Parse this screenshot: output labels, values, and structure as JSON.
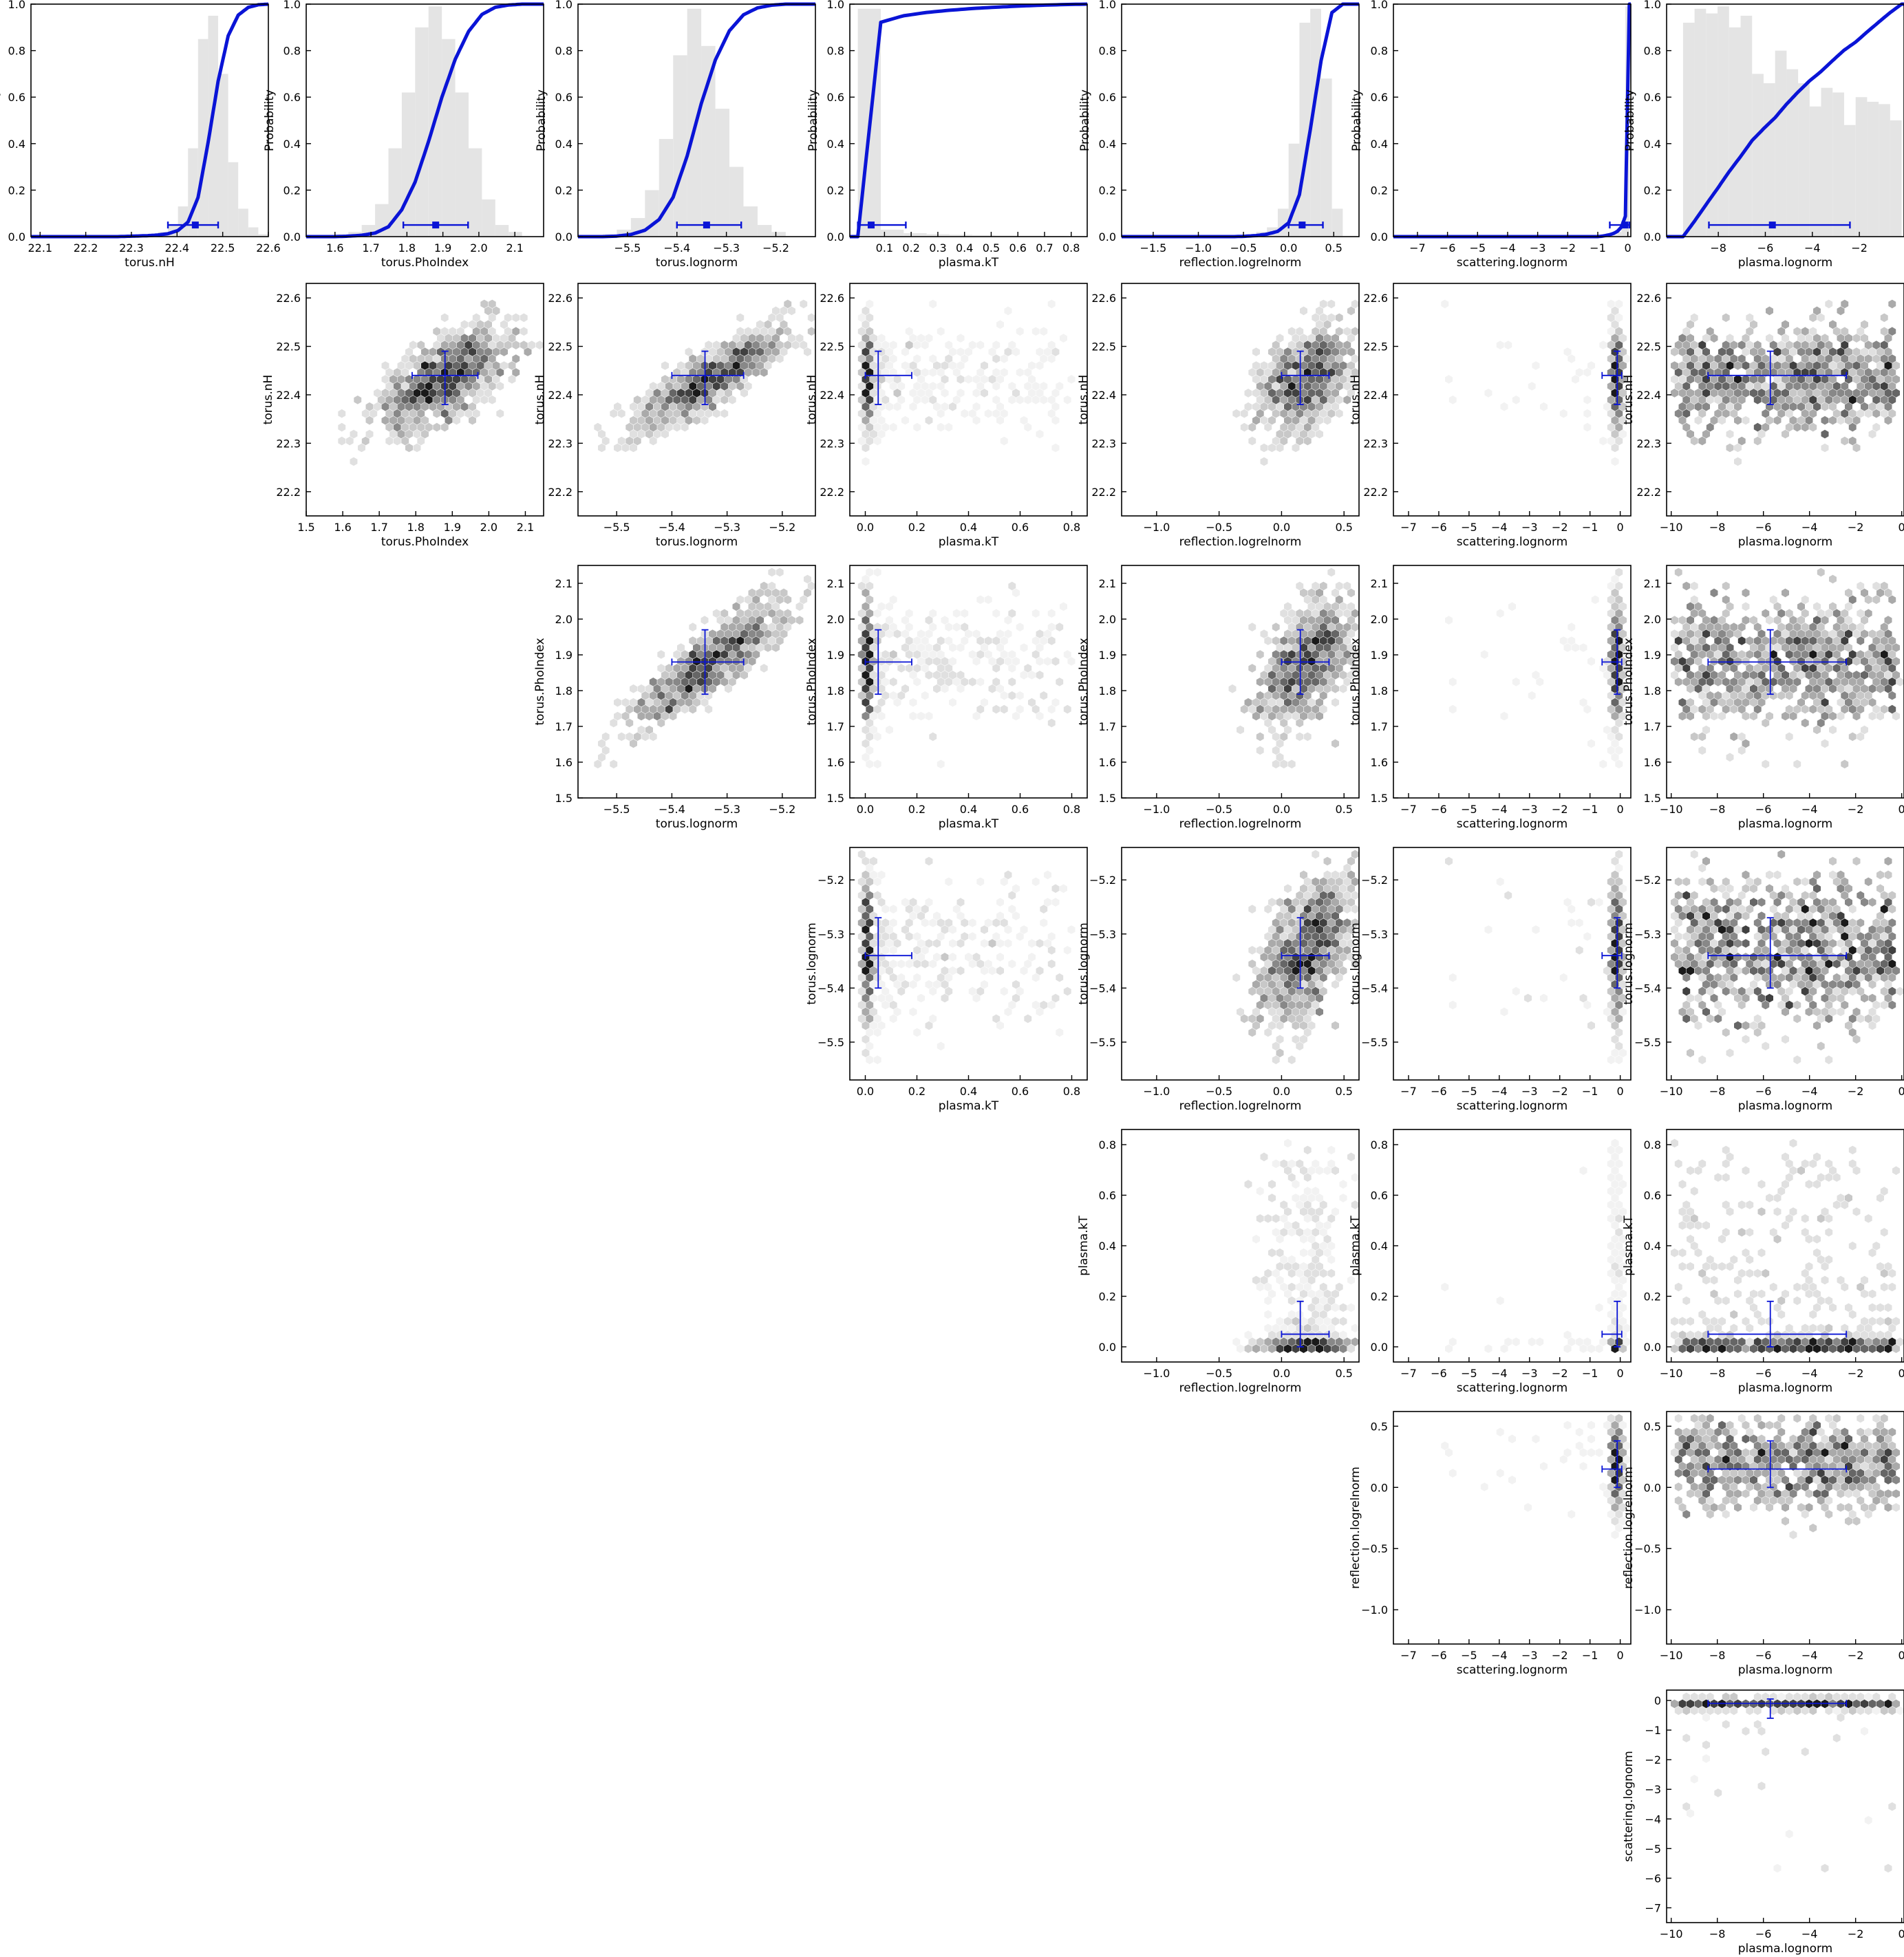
{
  "chart_data": {
    "type": "corner",
    "colors": {
      "accent": "#0a14d6",
      "hist": "#e4e4e4",
      "frame": "#000000"
    },
    "hist_ylabel": "Probability",
    "hist_yticks": [
      "0.0",
      "0.2",
      "0.4",
      "0.6",
      "0.8",
      "1.0"
    ],
    "params": [
      {
        "name": "torus.nH",
        "range": [
          22.08,
          22.6
        ],
        "ticks": [
          22.1,
          22.2,
          22.3,
          22.4,
          22.5,
          22.6
        ],
        "tick_labels": [
          "22.1",
          "22.2",
          "22.3",
          "22.4",
          "22.5",
          "22.6"
        ],
        "scatter_range": [
          22.15,
          22.63
        ],
        "scatter_ticks": [
          22.2,
          22.3,
          22.4,
          22.5,
          22.6
        ],
        "scatter_tick_labels": [
          "22.2",
          "22.3",
          "22.4",
          "22.5",
          "22.6"
        ],
        "median": 22.43,
        "center": 22.44,
        "lo": 22.38,
        "hi": 22.49,
        "hist": [
          0.005,
          0.005,
          0.005,
          0.01,
          0.02,
          0.05,
          0.13,
          0.38,
          0.85,
          0.95,
          0.7,
          0.32,
          0.12,
          0.04,
          0.01
        ],
        "hist_range": [
          22.27,
          22.6
        ]
      },
      {
        "name": "torus.PhoIndex",
        "range": [
          1.52,
          2.18
        ],
        "ticks": [
          1.6,
          1.7,
          1.8,
          1.9,
          2.0,
          2.1
        ],
        "tick_labels": [
          "1.6",
          "1.7",
          "1.8",
          "1.9",
          "2.0",
          "2.1"
        ],
        "scatter_range": [
          1.5,
          2.15
        ],
        "scatter_ticks": [
          1.5,
          1.6,
          1.7,
          1.8,
          1.9,
          2.0,
          2.1
        ],
        "scatter_tick_labels": [
          "1.5",
          "1.6",
          "1.7",
          "1.8",
          "1.9",
          "2.0",
          "2.1"
        ],
        "median": 1.87,
        "center": 1.88,
        "lo": 1.79,
        "hi": 1.97,
        "hist": [
          0.01,
          0.02,
          0.05,
          0.14,
          0.38,
          0.62,
          0.9,
          0.99,
          0.85,
          0.62,
          0.38,
          0.16,
          0.05,
          0.02
        ],
        "hist_range": [
          1.6,
          2.12
        ]
      },
      {
        "name": "torus.lognorm",
        "range": [
          -5.6,
          -5.12
        ],
        "ticks": [
          -5.5,
          -5.4,
          -5.3,
          -5.2
        ],
        "tick_labels": [
          "−5.5",
          "−5.4",
          "−5.3",
          "−5.2"
        ],
        "scatter_range": [
          -5.57,
          -5.14
        ],
        "scatter_ticks": [
          -5.5,
          -5.4,
          -5.3,
          -5.2
        ],
        "scatter_tick_labels": [
          "−5.5",
          "−5.4",
          "−5.3",
          "−5.2"
        ],
        "median": -5.335,
        "center": -5.34,
        "lo": -5.4,
        "hi": -5.27,
        "hist": [
          0.01,
          0.03,
          0.08,
          0.2,
          0.42,
          0.78,
          0.98,
          0.82,
          0.55,
          0.3,
          0.13,
          0.05,
          0.02
        ],
        "hist_range": [
          -5.55,
          -5.18
        ]
      },
      {
        "name": "plasma.kT",
        "range": [
          -0.03,
          0.86
        ],
        "ticks": [
          0.1,
          0.2,
          0.3,
          0.4,
          0.5,
          0.6,
          0.7,
          0.8
        ],
        "tick_labels": [
          "0.1",
          "0.2",
          "0.3",
          "0.4",
          "0.5",
          "0.6",
          "0.7",
          "0.8"
        ],
        "scatter_ticks": [
          0.0,
          0.2,
          0.4,
          0.6,
          0.8
        ],
        "scatter_tick_labels": [
          "0.0",
          "0.2",
          "0.4",
          "0.6",
          "0.8"
        ],
        "scatter_range": [
          -0.06,
          0.86
        ],
        "median": 0.0,
        "center": 0.05,
        "lo": 0.0,
        "hi": 0.18,
        "hist": [
          0.98,
          0.03,
          0.015,
          0.01,
          0.008,
          0.006,
          0.005,
          0.004,
          0.003,
          0.002
        ],
        "hist_range": [
          0.0,
          0.86
        ]
      },
      {
        "name": "reflection.logrelnorm",
        "range": [
          -1.85,
          0.78
        ],
        "ticks": [
          -1.5,
          -1.0,
          -0.5,
          0.0,
          0.5
        ],
        "tick_labels": [
          "−1.5",
          "−1.0",
          "−0.5",
          "0.0",
          "0.5"
        ],
        "scatter_range": [
          -1.28,
          0.62
        ],
        "scatter_ticks": [
          -1.0,
          -0.5,
          0.0,
          0.5
        ],
        "scatter_tick_labels": [
          "−1.0",
          "−0.5",
          "0.0",
          "0.5"
        ],
        "median": 0.18,
        "center": 0.15,
        "lo": 0.0,
        "hi": 0.38,
        "hist": [
          0.005,
          0.01,
          0.02,
          0.04,
          0.12,
          0.4,
          0.92,
          0.98,
          0.68,
          0.12
        ],
        "hist_range": [
          -0.6,
          0.6
        ]
      },
      {
        "name": "scattering.lognorm",
        "range": [
          -7.8,
          0.1
        ],
        "ticks": [
          -7,
          -6,
          -5,
          -4,
          -3,
          -2,
          -1,
          0
        ],
        "tick_labels": [
          "−7",
          "−6",
          "−5",
          "−4",
          "−3",
          "−2",
          "−1",
          "0"
        ],
        "scatter_range": [
          -7.5,
          0.35
        ],
        "scatter_ticks": [
          -7,
          -6,
          -5,
          -4,
          -3,
          -2,
          -1,
          0
        ],
        "scatter_tick_labels": [
          "−7",
          "−6",
          "−5",
          "−4",
          "−3",
          "−2",
          "−1",
          "0"
        ],
        "median": -0.15,
        "center": -0.1,
        "lo": -0.6,
        "hi": 0.05,
        "hist": [
          0.002,
          0.003,
          0.004,
          0.006,
          0.01,
          0.02,
          0.05,
          0.99
        ],
        "hist_range": [
          -1.0,
          0.05
        ]
      },
      {
        "name": "plasma.lognorm",
        "range": [
          -10.2,
          -0.1
        ],
        "ticks": [
          -8,
          -6,
          -4,
          -2
        ],
        "tick_labels": [
          "−8",
          "−6",
          "−4",
          "−2"
        ],
        "scatter_range": [
          -10.2,
          0.1
        ],
        "scatter_ticks": [
          -10,
          -8,
          -6,
          -4,
          -2,
          0
        ],
        "scatter_tick_labels": [
          "−10",
          "−8",
          "−6",
          "−4",
          "−2",
          "0"
        ],
        "median": -5.5,
        "center": -5.7,
        "lo": -8.4,
        "hi": -2.4,
        "hist": [
          0.92,
          0.98,
          0.96,
          0.99,
          0.9,
          0.95,
          0.7,
          0.66,
          0.8,
          0.72,
          0.66,
          0.56,
          0.64,
          0.62,
          0.48,
          0.6,
          0.58,
          0.57,
          0.5
        ],
        "hist_range": [
          -9.5,
          -0.2
        ]
      }
    ]
  }
}
